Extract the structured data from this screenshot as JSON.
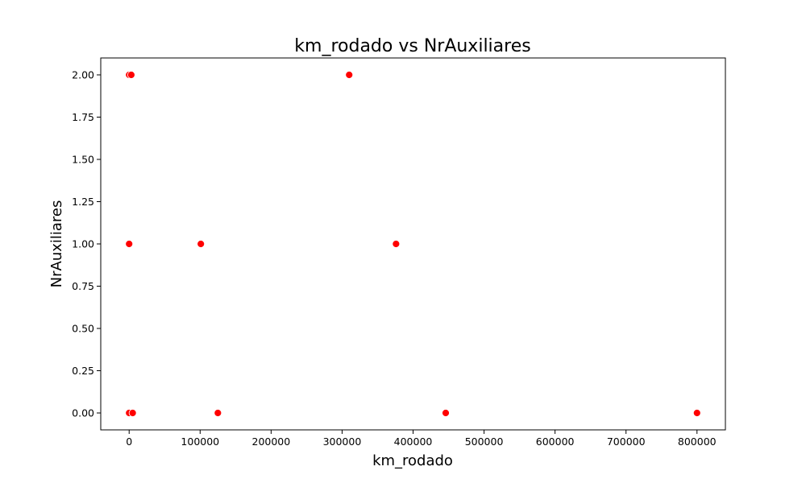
{
  "chart_data": {
    "type": "scatter",
    "title": "km_rodado vs NrAuxiliares",
    "xlabel": "km_rodado",
    "ylabel": "NrAuxiliares",
    "xlim": [
      -40000,
      840000
    ],
    "ylim": [
      -0.1,
      2.1
    ],
    "xticks": [
      0,
      100000,
      200000,
      300000,
      400000,
      500000,
      600000,
      700000,
      800000
    ],
    "xtick_labels": [
      "0",
      "100000",
      "200000",
      "300000",
      "400000",
      "500000",
      "600000",
      "700000",
      "800000"
    ],
    "yticks": [
      0.0,
      0.25,
      0.5,
      0.75,
      1.0,
      1.25,
      1.5,
      1.75,
      2.0
    ],
    "ytick_labels": [
      "0.00",
      "0.25",
      "0.50",
      "0.75",
      "1.00",
      "1.25",
      "1.50",
      "1.75",
      "2.00"
    ],
    "grid": false,
    "marker_color": "#ff0000",
    "marker_edge_color": "#ffffff",
    "points": [
      {
        "x": 0,
        "y": 2
      },
      {
        "x": 3000,
        "y": 2
      },
      {
        "x": 310000,
        "y": 2
      },
      {
        "x": 0,
        "y": 1
      },
      {
        "x": 101000,
        "y": 1
      },
      {
        "x": 376000,
        "y": 1
      },
      {
        "x": 0,
        "y": 0
      },
      {
        "x": 5000,
        "y": 0
      },
      {
        "x": 125000,
        "y": 0
      },
      {
        "x": 446000,
        "y": 0
      },
      {
        "x": 800000,
        "y": 0
      }
    ]
  }
}
